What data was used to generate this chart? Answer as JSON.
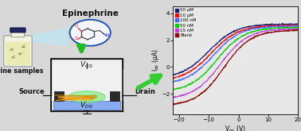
{
  "title": "Epinephrine",
  "urine_label": "Urine samples",
  "source_label": "Source",
  "drain_label": "Drain",
  "xlabel": "V$_{gs}$ (V)",
  "ylabel": "I$_{ds}$ (μA)",
  "xlim": [
    -22,
    20
  ],
  "ylim": [
    -3.5,
    4.5
  ],
  "xticks": [
    -20,
    -10,
    0,
    10,
    20
  ],
  "yticks": [
    -2,
    0,
    2,
    4
  ],
  "legend_labels": [
    "50 μM",
    "10 μM",
    "100 nM",
    "50 nM",
    "15 nM",
    "Blank"
  ],
  "legend_colors": [
    "#1a1a6e",
    "#ff0000",
    "#4466ff",
    "#00cc00",
    "#bb44dd",
    "#8B0000"
  ],
  "bg_color": "#d8d8d8",
  "plot_bg": "#e8e8e8",
  "x_shift_offsets": [
    0.0,
    0.8,
    1.6,
    2.8,
    4.0,
    5.0
  ],
  "imins": [
    -0.85,
    -1.05,
    -1.3,
    -1.85,
    -2.4,
    -2.9
  ],
  "imaxs": [
    3.2,
    3.1,
    3.05,
    2.95,
    2.85,
    2.75
  ]
}
